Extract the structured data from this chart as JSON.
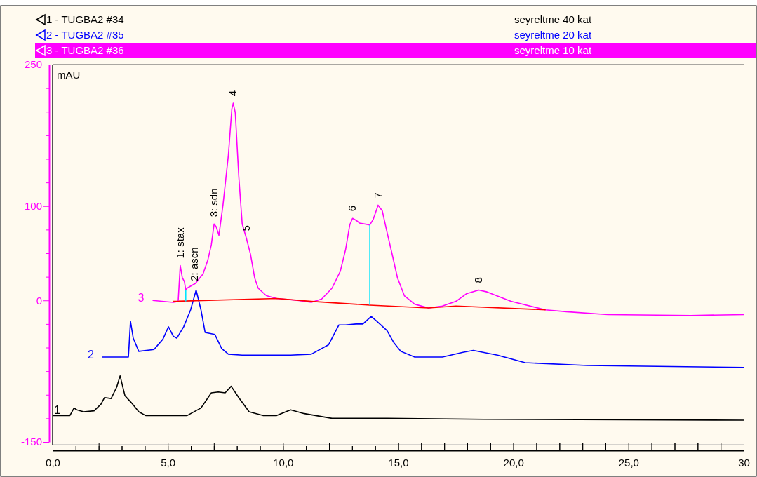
{
  "chart_data": {
    "type": "line",
    "ylabel": "mAU",
    "xlim": [
      0,
      30
    ],
    "ylim": [
      -150,
      250
    ],
    "xticks": [
      {
        "value": 0,
        "label": "0,0"
      },
      {
        "value": 1,
        "label": null
      },
      {
        "value": 2,
        "label": null
      },
      {
        "value": 3,
        "label": null
      },
      {
        "value": 4,
        "label": null
      },
      {
        "value": 5,
        "label": "5,0"
      },
      {
        "value": 6,
        "label": null
      },
      {
        "value": 7,
        "label": null
      },
      {
        "value": 8,
        "label": null
      },
      {
        "value": 9,
        "label": null
      },
      {
        "value": 10,
        "label": "10,0"
      },
      {
        "value": 11,
        "label": null
      },
      {
        "value": 12,
        "label": null
      },
      {
        "value": 13,
        "label": null
      },
      {
        "value": 14,
        "label": null
      },
      {
        "value": 15,
        "label": "15,0"
      },
      {
        "value": 16,
        "label": null
      },
      {
        "value": 17,
        "label": null
      },
      {
        "value": 18,
        "label": null
      },
      {
        "value": 19,
        "label": null
      },
      {
        "value": 20,
        "label": "20,0"
      },
      {
        "value": 21,
        "label": null
      },
      {
        "value": 22,
        "label": null
      },
      {
        "value": 23,
        "label": null
      },
      {
        "value": 24,
        "label": null
      },
      {
        "value": 25,
        "label": "25,0"
      },
      {
        "value": 26,
        "label": null
      },
      {
        "value": 27,
        "label": null
      },
      {
        "value": 28,
        "label": null
      },
      {
        "value": 29,
        "label": null
      },
      {
        "value": 30,
        "label": "30"
      }
    ],
    "yticks": [
      250,
      {
        "value": 225,
        "label": null
      },
      {
        "value": 200,
        "label": null
      },
      {
        "value": 175,
        "label": null
      },
      {
        "value": 150,
        "label": null
      },
      {
        "value": 125,
        "label": null
      },
      100,
      {
        "value": 75,
        "label": null
      },
      {
        "value": 50,
        "label": null
      },
      {
        "value": 25,
        "label": null
      },
      0,
      {
        "value": -25,
        "label": null
      },
      {
        "value": -50,
        "label": null
      },
      {
        "value": -75,
        "label": null
      },
      {
        "value": -100,
        "label": null
      },
      {
        "value": -125,
        "label": null
      },
      -150
    ],
    "grid": false,
    "legend": "top",
    "marker": "none",
    "line_style": "solid",
    "series": [
      {
        "name": "1 - TUGBA2 #34",
        "color": "#000000",
        "x": [
          0,
          0.75,
          0.93,
          1.05,
          1.35,
          1.8,
          2.1,
          2.25,
          2.54,
          2.78,
          2.93,
          3.14,
          3.44,
          3.74,
          4.04,
          5.84,
          6.44,
          6.89,
          7.19,
          7.49,
          7.75,
          8.08,
          8.53,
          9.13,
          9.73,
          10.33,
          10.93,
          12.13,
          14.52,
          18.71,
          30
        ],
        "values": [
          -122,
          -122,
          -114,
          -116,
          -118,
          -117,
          -110,
          -103,
          -104,
          -92,
          -80,
          -101,
          -109,
          -118,
          -122,
          -122,
          -114,
          -98,
          -97,
          -98,
          -91,
          -103,
          -118,
          -122,
          -122,
          -116,
          -120,
          -125,
          -125,
          -126,
          -127
        ]
      },
      {
        "name": "2 - TUGBA2 #35",
        "color": "#0000ff",
        "x": [
          2.16,
          3.29,
          3.38,
          3.5,
          3.74,
          4.4,
          4.79,
          5.03,
          5.24,
          5.39,
          5.69,
          5.99,
          6.23,
          6.44,
          6.62,
          7.04,
          7.34,
          7.63,
          8.23,
          10.33,
          11.23,
          11.98,
          12.43,
          12.72,
          13.17,
          13.47,
          13.83,
          14.07,
          14.52,
          14.82,
          15.12,
          15.72,
          16.92,
          17.81,
          18.26,
          19.31,
          20.51,
          23.2,
          30
        ],
        "values": [
          -60,
          -60,
          -22,
          -40,
          -54,
          -52,
          -41,
          -28,
          -38,
          -40,
          -28,
          -10,
          11,
          -10,
          -34,
          -36,
          -51,
          -57,
          -58,
          -58,
          -57,
          -47,
          -26,
          -26,
          -25,
          -25,
          -17,
          -22,
          -32,
          -45,
          -54,
          -60,
          -60,
          -55,
          -53,
          -58,
          -66,
          -69,
          -71
        ]
      },
      {
        "name": "3 - TUGBA2 #36",
        "color": "#ff00ff",
        "x": [
          4.34,
          5.24,
          5.45,
          5.54,
          5.63,
          5.72,
          5.78,
          5.84,
          6.2,
          6.53,
          6.74,
          6.89,
          7.01,
          7.1,
          7.22,
          7.4,
          7.63,
          7.78,
          7.84,
          7.93,
          8.08,
          8.23,
          8.41,
          8.59,
          8.77,
          8.92,
          9.28,
          9.73,
          10.63,
          11.23,
          11.68,
          12.13,
          12.49,
          12.72,
          12.9,
          13.02,
          13.17,
          13.32,
          13.77,
          13.92,
          14.13,
          14.31,
          14.52,
          14.73,
          14.97,
          15.27,
          15.72,
          16.32,
          16.92,
          17.51,
          17.96,
          18.5,
          18.86,
          19.9,
          21.4,
          22.3,
          24.1,
          27.7,
          30
        ],
        "values": [
          0,
          -2,
          -1,
          37,
          24,
          20,
          11,
          13,
          18,
          28,
          43,
          59,
          81,
          78,
          69,
          102,
          154,
          203,
          209,
          199,
          132,
          81,
          66,
          49,
          24,
          13,
          5,
          2,
          0,
          -2,
          1.5,
          13,
          31,
          54,
          80,
          87,
          85,
          82,
          80,
          86,
          101,
          95,
          72,
          50,
          24,
          5,
          -4,
          -8,
          -6,
          -1,
          7,
          11,
          9,
          -1,
          -10,
          -12,
          -15,
          -16,
          -15
        ]
      },
      {
        "color": "#ff0000",
        "x": [
          5.24,
          9.73,
          11.23,
          13.77,
          16.32,
          17.51,
          21.4
        ],
        "values": [
          -1,
          2,
          -1,
          -5,
          -8,
          -6,
          -10
        ]
      },
      {
        "color": "#00e5ff",
        "x": [
          13.77,
          13.77
        ],
        "values": [
          -5,
          80
        ]
      },
      {
        "color": "#00e5ff",
        "x": [
          5.78,
          5.78
        ],
        "values": [
          -1,
          11
        ]
      }
    ],
    "annotations": [
      "seyreltme 40 kat",
      "seyreltme 20 kat",
      "seyreltme 10 kat",
      {
        "text": "1",
        "x": 0,
        "y": -122
      },
      {
        "text": "2",
        "x": 2.16,
        "y": -60
      },
      {
        "text": "3",
        "x": 4.34,
        "y": 0
      },
      {
        "text": "1: stax",
        "x": 5.54,
        "y": 37
      },
      {
        "text": "2: ascn",
        "x": 5.84,
        "y": 13
      },
      {
        "text": "3: sdn",
        "x": 7.01,
        "y": 81
      },
      {
        "text": "4",
        "x": 7.84,
        "y": 209
      },
      {
        "text": "5",
        "x": 8.41,
        "y": 66
      },
      {
        "text": "6",
        "x": 13.02,
        "y": 87
      },
      {
        "text": "7",
        "x": 14.13,
        "y": 101
      },
      {
        "text": "8",
        "x": 18.5,
        "y": 11
      }
    ]
  }
}
